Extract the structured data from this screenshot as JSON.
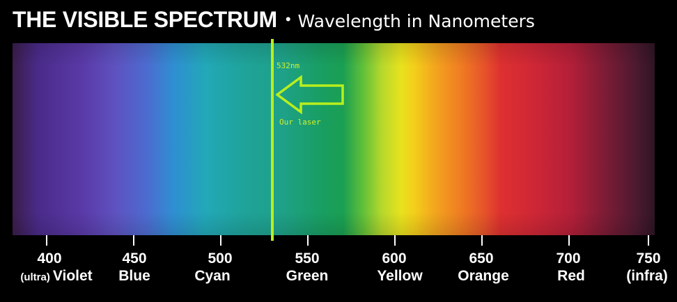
{
  "title": {
    "main": "THE VISIBLE SPECTRUM",
    "separator": "•",
    "subtitle": "Wavelength in Nanometers"
  },
  "annotation": {
    "wavelength_label": "532nm",
    "caption": "Our laser",
    "wavelength_nm": 532,
    "color": "#b9ef1d"
  },
  "axis": {
    "ticks": [
      {
        "value": "400",
        "prefix": "(ultra)",
        "name": "Violet"
      },
      {
        "value": "450",
        "prefix": "",
        "name": "Blue"
      },
      {
        "value": "500",
        "prefix": "",
        "name": "Cyan"
      },
      {
        "value": "550",
        "prefix": "",
        "name": "Green"
      },
      {
        "value": "600",
        "prefix": "",
        "name": "Yellow"
      },
      {
        "value": "650",
        "prefix": "",
        "name": "Orange"
      },
      {
        "value": "700",
        "prefix": "",
        "name": "Red"
      },
      {
        "value": "750",
        "prefix": "",
        "name": "(infra)"
      }
    ]
  }
}
